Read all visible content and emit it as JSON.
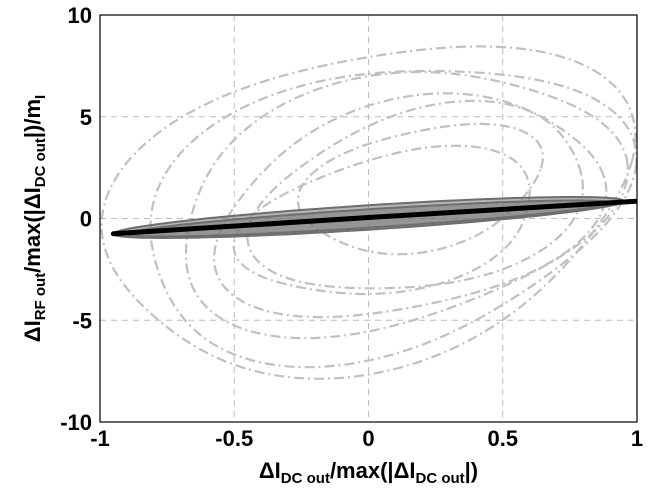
{
  "chart_data": {
    "type": "line",
    "title": "",
    "xlabel": {
      "parts": [
        "ΔI",
        "DC out",
        "/max(|ΔI",
        "DC out",
        "|)"
      ]
    },
    "ylabel": {
      "parts": [
        "ΔI",
        "RF out",
        "/max(|ΔI",
        "DC out",
        "|)/m",
        "I"
      ]
    },
    "xlim": [
      -1,
      1
    ],
    "ylim": [
      -10,
      10
    ],
    "xticks": [
      -1,
      -0.5,
      0,
      0.5,
      1
    ],
    "xtick_labels": [
      "-1",
      "-0.5",
      "0",
      "0.5",
      "1"
    ],
    "yticks": [
      -10,
      -5,
      0,
      5,
      10
    ],
    "ytick_labels": [
      "-10",
      "-5",
      "0",
      "5",
      "10"
    ],
    "grid": true,
    "legend": "none",
    "series": [
      {
        "style": "dash-dot",
        "color": "#c0c0c0",
        "description_role": "light gray wide chaotic loops",
        "loops": [
          {
            "cx": 0.0,
            "cy": 0.6,
            "rx": 0.98,
            "ry": 7.8,
            "rot": -0.08
          },
          {
            "cx": 0.05,
            "cy": 0.4,
            "rx": 0.9,
            "ry": 7.0,
            "rot": -0.08
          },
          {
            "cx": 0.1,
            "cy": 0.8,
            "rx": 0.82,
            "ry": 6.2,
            "rot": -0.1
          },
          {
            "cx": 0.15,
            "cy": 0.5,
            "rx": 0.72,
            "ry": 5.2,
            "rot": -0.1
          },
          {
            "cx": 0.2,
            "cy": 0.9,
            "rx": 0.62,
            "ry": 4.4,
            "rot": -0.12
          },
          {
            "cx": 0.08,
            "cy": -0.2,
            "rx": 0.55,
            "ry": 3.4,
            "rot": -0.15
          },
          {
            "cx": 0.2,
            "cy": 1.5,
            "rx": 0.45,
            "ry": 3.0,
            "rot": -0.15
          }
        ]
      },
      {
        "style": "solid",
        "color": "#6e6e6e",
        "description_role": "dark gray narrow band",
        "loops": [
          {
            "cx": 0.0,
            "cy": 0.05,
            "rx": 0.95,
            "ry": 1.2,
            "slope": 0.85
          },
          {
            "cx": 0.0,
            "cy": 0.0,
            "rx": 0.9,
            "ry": 0.9,
            "slope": 0.85
          }
        ]
      },
      {
        "style": "solid",
        "color": "#000000",
        "description_role": "black thin band",
        "points": [
          [
            -0.95,
            -0.75
          ],
          [
            0.0,
            0.05
          ],
          [
            1.0,
            0.85
          ]
        ]
      }
    ]
  }
}
